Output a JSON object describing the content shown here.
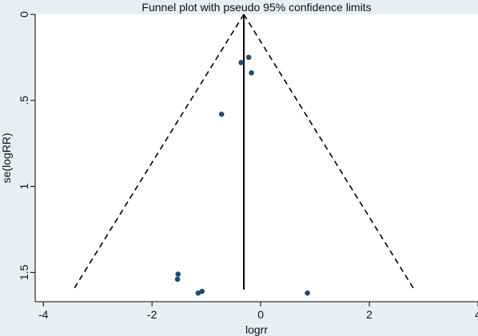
{
  "chart_data": {
    "type": "scatter",
    "title": "Funnel plot with pseudo 95% confidence limits",
    "xlabel": "logrr",
    "ylabel": "se(logRR)",
    "xlim": [
      -4.15,
      4.0
    ],
    "ylim": [
      0,
      1.67
    ],
    "y_reversed": true,
    "xticks": [
      {
        "value": -4,
        "label": "-4"
      },
      {
        "value": -2,
        "label": "-2"
      },
      {
        "value": 0,
        "label": "0"
      },
      {
        "value": 2,
        "label": "2"
      },
      {
        "value": 4,
        "label": "4"
      }
    ],
    "yticks": [
      {
        "value": 0,
        "label": "0"
      },
      {
        "value": 0.5,
        "label": ".5"
      },
      {
        "value": 1,
        "label": "1"
      },
      {
        "value": 1.5,
        "label": "1.5"
      }
    ],
    "pooled_estimate": -0.31,
    "funnel_limits": {
      "se_max": 1.6,
      "z": 1.96
    },
    "points": [
      {
        "x": -0.22,
        "y": 0.25
      },
      {
        "x": -0.36,
        "y": 0.28
      },
      {
        "x": -0.17,
        "y": 0.34
      },
      {
        "x": -0.72,
        "y": 0.58
      },
      {
        "x": -1.52,
        "y": 1.51
      },
      {
        "x": -1.53,
        "y": 1.54
      },
      {
        "x": -1.15,
        "y": 1.62
      },
      {
        "x": -1.08,
        "y": 1.61
      },
      {
        "x": 0.86,
        "y": 1.62
      }
    ],
    "grid": false,
    "colors": {
      "points": "#1f4e79",
      "background": "#e8eef2",
      "plot_background": "#ffffff",
      "lines": "#000000"
    }
  }
}
